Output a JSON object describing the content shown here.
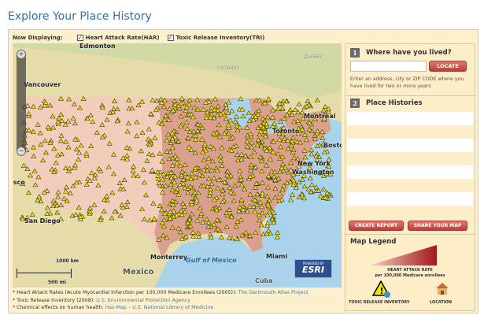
{
  "page": {
    "title": "Explore Your Place History"
  },
  "toolbar": {
    "now_displaying": "Now Displaying:",
    "layers": [
      {
        "label": "Heart Attack Rate(HAR)",
        "checked": true
      },
      {
        "label": "Toxic Release Inventory(TRI)",
        "checked": true
      }
    ]
  },
  "map": {
    "labels": {
      "edmonton": "Edmonton",
      "ontario": "ONTARIO",
      "quebec": "QUEBEC",
      "vancouver": "Vancouver",
      "toronto": "Toronto",
      "montreal": "Montreal",
      "boston": "Boston",
      "new_york": "New York",
      "washington": "Washington",
      "san_francisco": "isco",
      "san_diego": "San Diego",
      "monterrey": "Monterrey",
      "gulf": "Gulf of Mexico",
      "mexico": "Mexico",
      "miami": "Miami",
      "cuba": "Cuba"
    },
    "scale": {
      "km": "1000 km",
      "mi": "500 mi"
    },
    "esri": {
      "powered": "POWERED BY",
      "brand": "ESRI"
    },
    "zoom": {
      "in": "+",
      "out": "−"
    },
    "marker_color": "#f5e400"
  },
  "panel": {
    "step1": {
      "num": "1",
      "title": "Where have you lived?",
      "input_value": "",
      "locate": "LOCATE",
      "help": "Enter an address, city or ZIP CODE where you have lived for two or more years"
    },
    "step2": {
      "num": "2",
      "title": "Place Histories"
    },
    "create_report": "CREATE REPORT",
    "share_map": "SHARE YOUR MAP",
    "legend": {
      "title": "Map Legend",
      "har_title": "HEART ATTACK RATE",
      "har_sub": "per 100,000 Medicare enrollees",
      "tri": "TOXIC RELEASE INVENTORY",
      "location": "LOCATION",
      "har_color": "#a5161b"
    }
  },
  "notes": [
    {
      "label": "Heart Attack Rates (Acute Myocardial Infarction per 100,000 Medicare Enrollees (2005)):",
      "source": "The Dartmouth Atlas Project"
    },
    {
      "label": "Toxic Release Inventory (2008):",
      "source": "U.S. Environmental Protection Agency"
    },
    {
      "label": "Chemical effects on human health:",
      "source": "Haz-Map – U.S. National Library of Medicine"
    }
  ]
}
